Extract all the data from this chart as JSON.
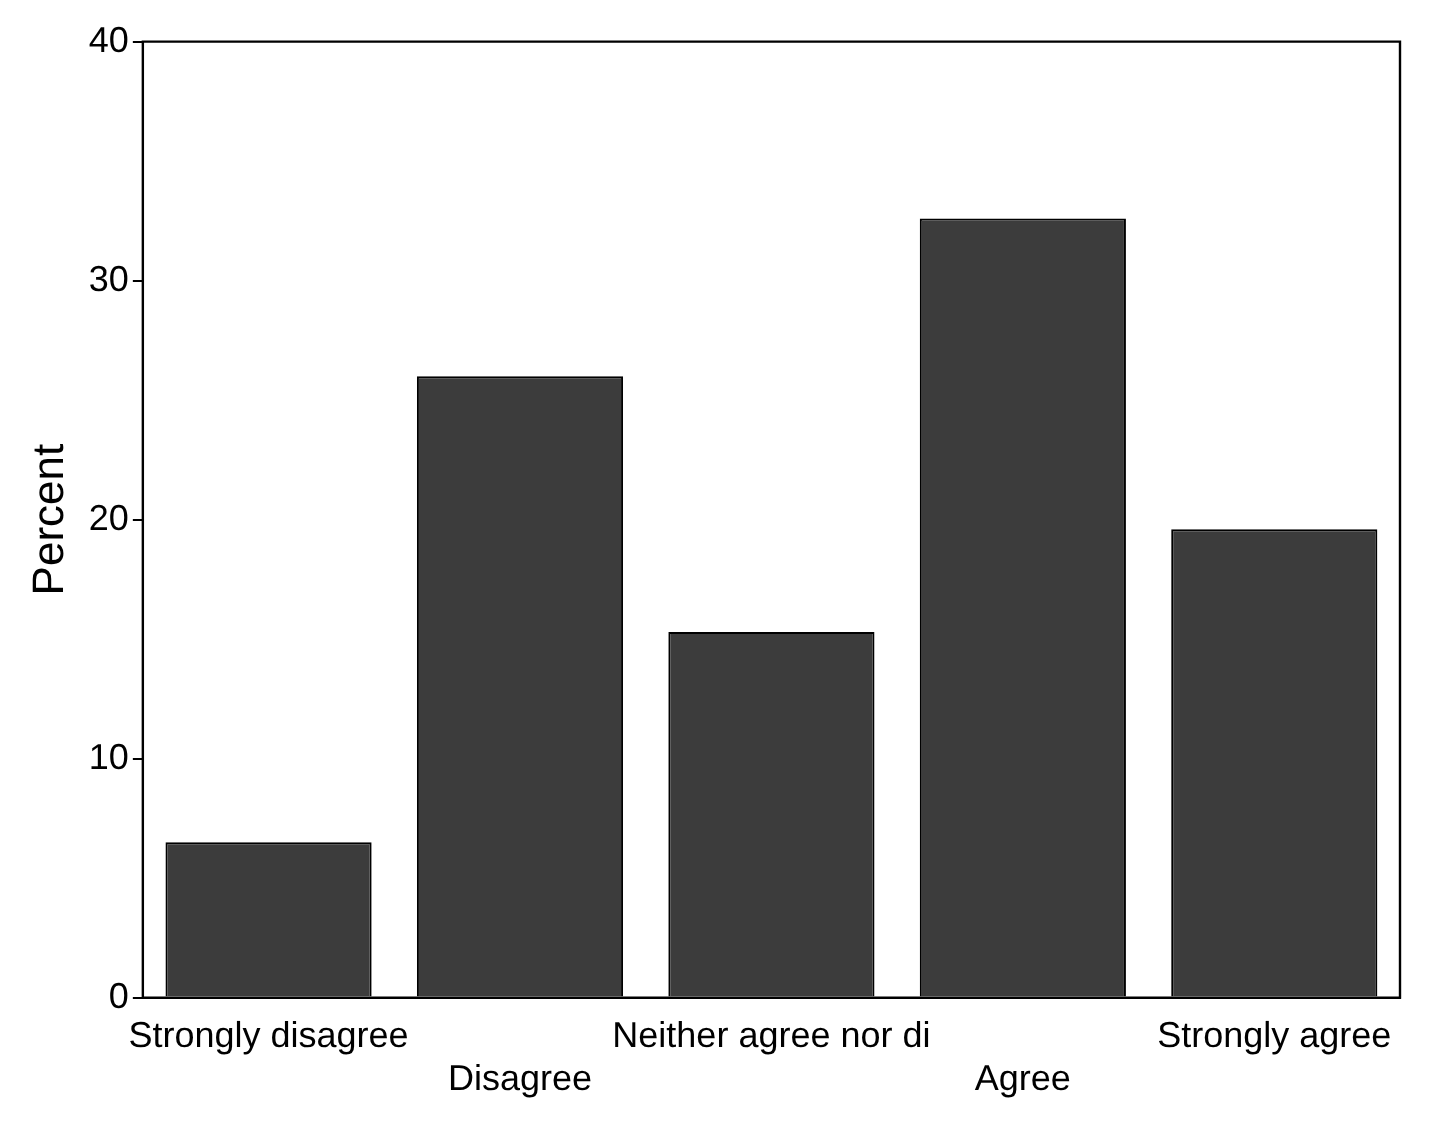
{
  "chart_data": {
    "type": "bar",
    "ylabel": "Percent",
    "categories": [
      "Strongly disagree",
      "Disagree",
      "Neither agree nor di",
      "Agree",
      "Strongly agree"
    ],
    "values": [
      6.5,
      26.0,
      15.3,
      32.6,
      19.6
    ],
    "color": "#3c3c3c",
    "ylim": [
      0,
      40
    ],
    "yticks": [
      0,
      10,
      20,
      30,
      40
    ],
    "grid": false,
    "legend": false
  }
}
